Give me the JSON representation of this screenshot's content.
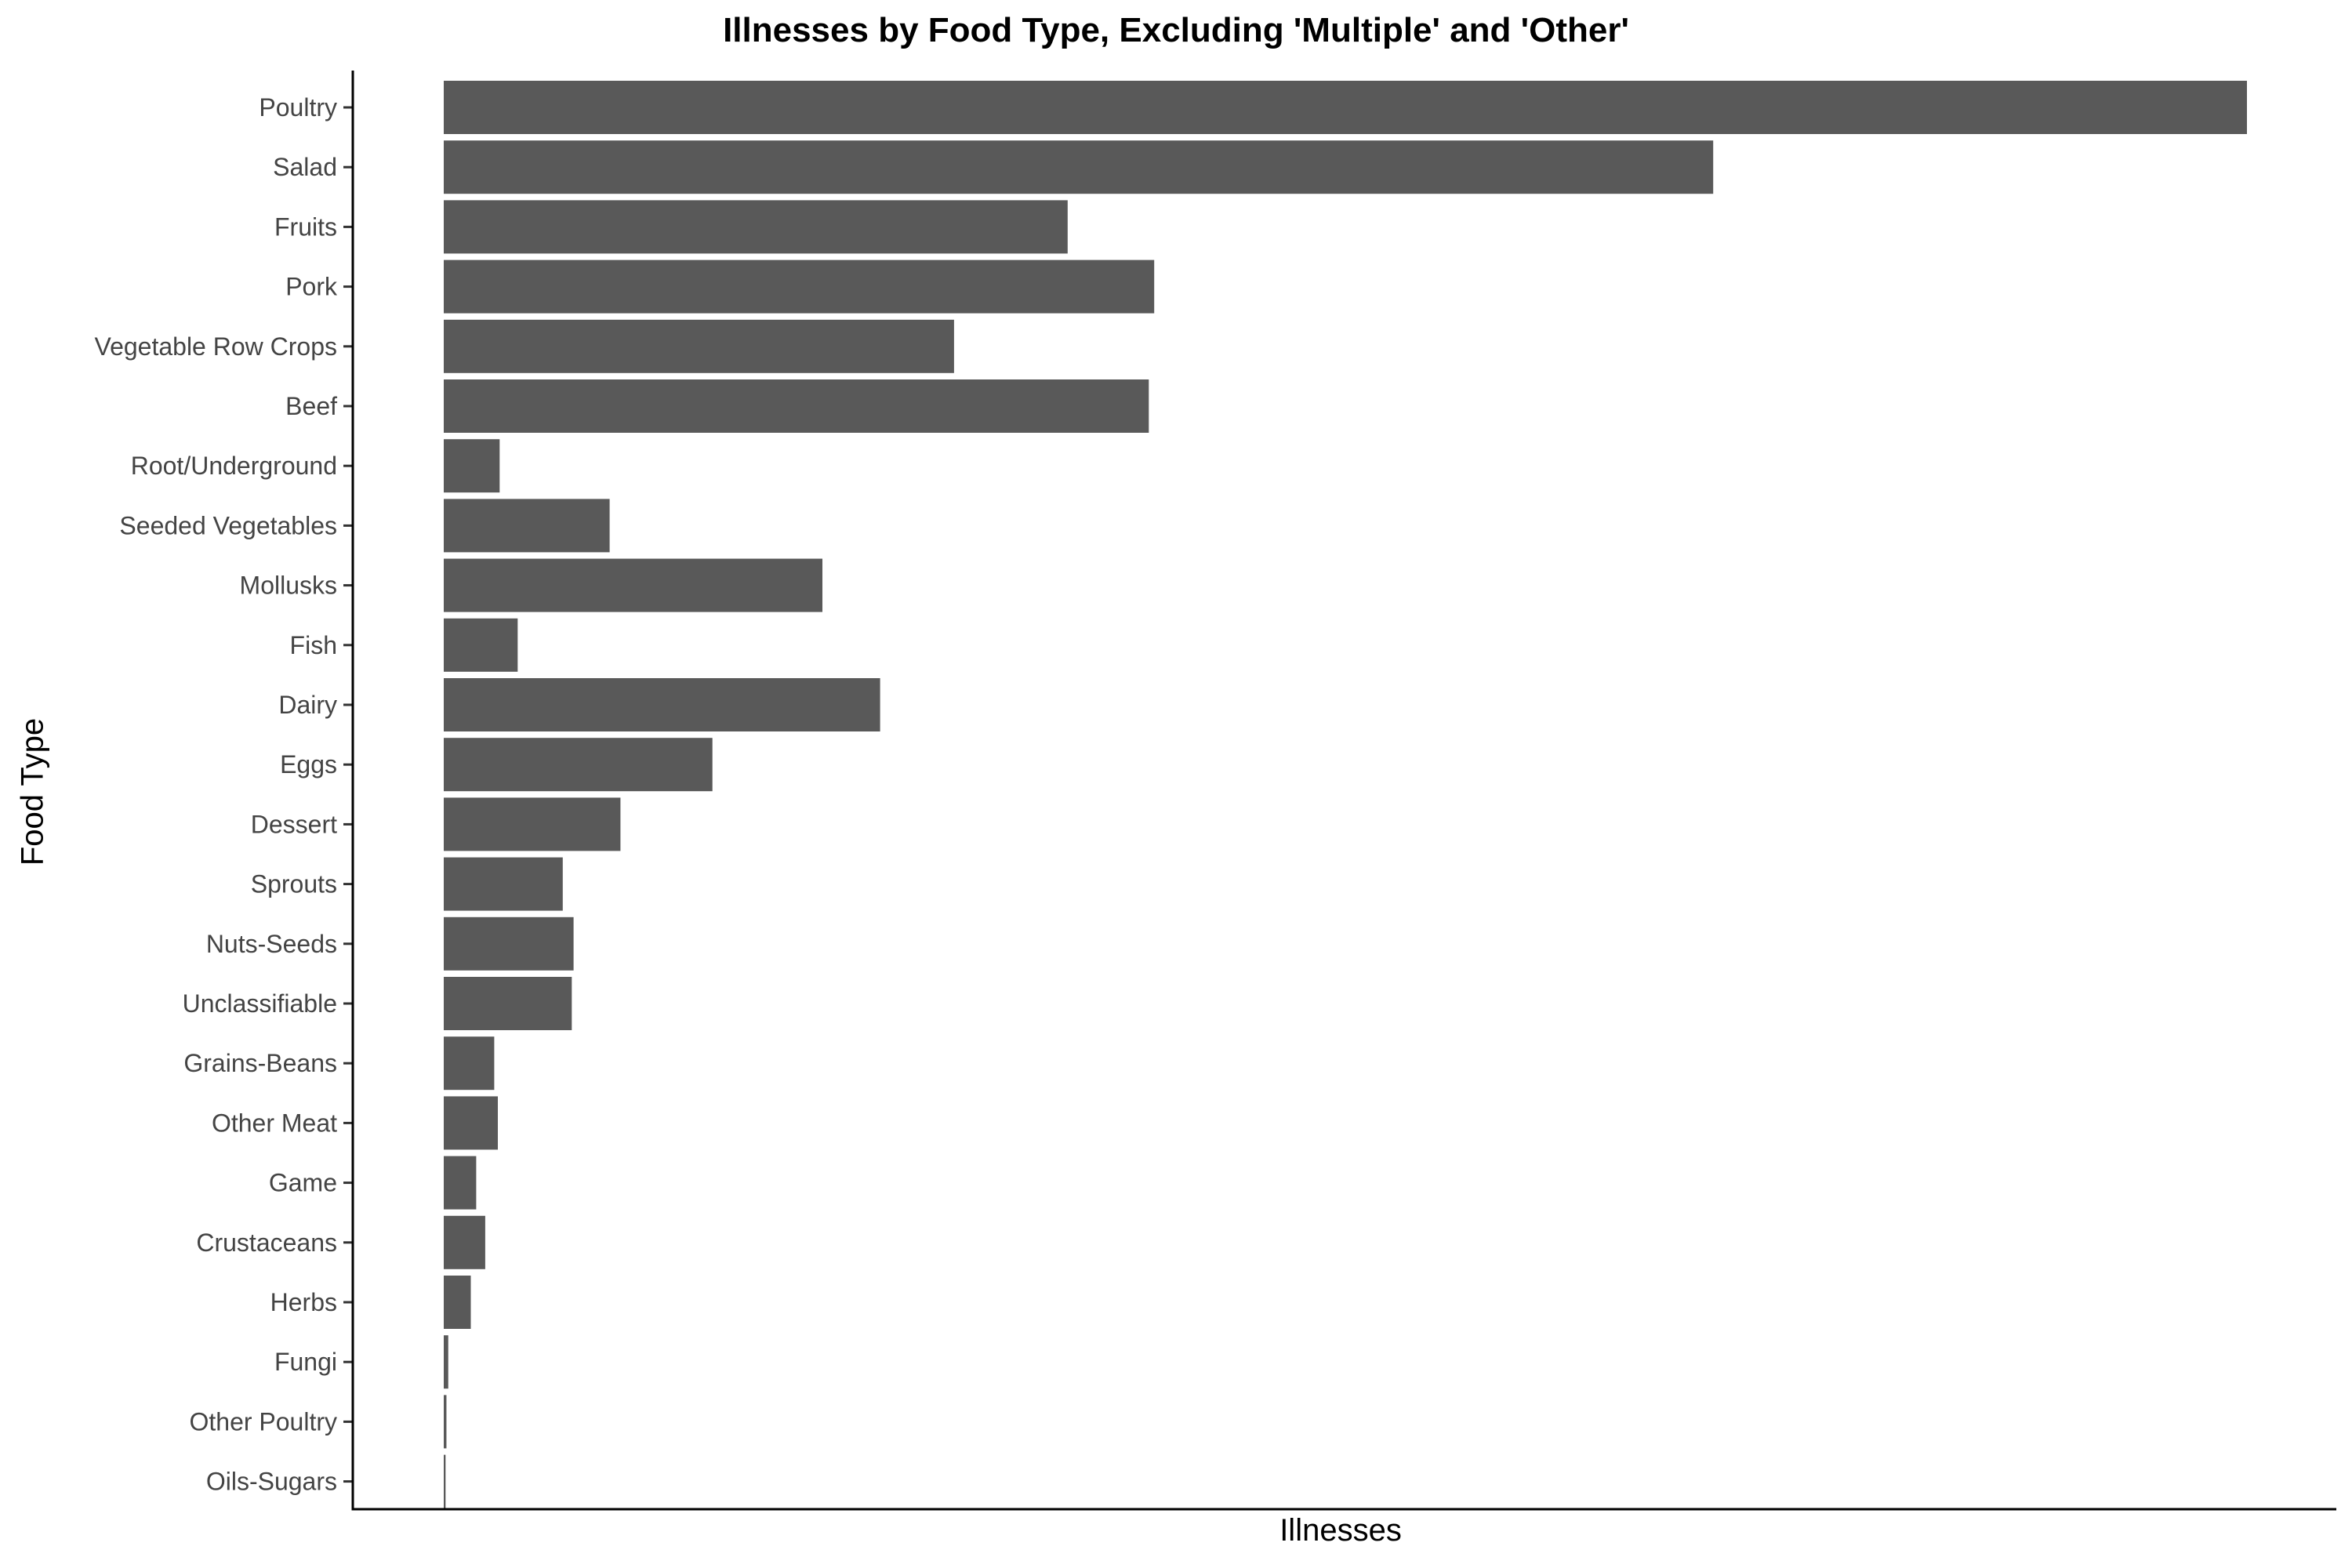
{
  "chart_data": {
    "type": "bar",
    "orientation": "horizontal",
    "title": "Illnesses by Food Type, Excluding 'Multiple' and 'Other'",
    "xlabel": "Illnesses",
    "ylabel": "Food Type",
    "categories": [
      "Poultry",
      "Salad",
      "Fruits",
      "Pork",
      "Vegetable Row Crops",
      "Beef",
      "Root/Underground",
      "Seeded Vegetables",
      "Mollusks",
      "Fish",
      "Dairy",
      "Eggs",
      "Dessert",
      "Sprouts",
      "Nuts-Seeds",
      "Unclassifiable",
      "Grains-Beans",
      "Other Meat",
      "Game",
      "Crustaceans",
      "Herbs",
      "Fungi",
      "Other Poultry",
      "Oils-Sugars"
    ],
    "values": [
      100,
      70.4,
      34.6,
      39.4,
      28.3,
      39.1,
      3.1,
      9.2,
      21.0,
      4.1,
      24.2,
      14.9,
      9.8,
      6.6,
      7.2,
      7.1,
      2.8,
      3.0,
      1.8,
      2.3,
      1.5,
      0.25,
      0.15,
      0.1
    ],
    "x_tick_labels": "none",
    "grid": false,
    "legend": "none",
    "bar_color": "#595959"
  }
}
